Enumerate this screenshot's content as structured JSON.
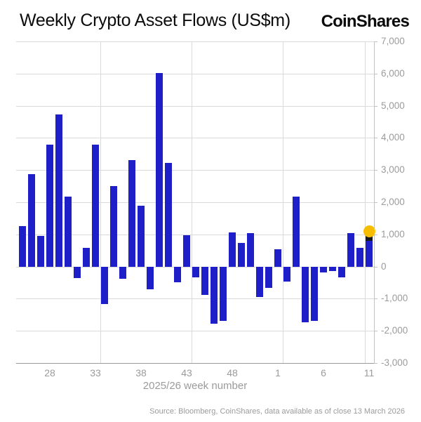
{
  "header": {
    "title": "Weekly Crypto Asset Flows (US$m)",
    "logo": "CoinShares"
  },
  "footer": {
    "source": "Source: Bloomberg, CoinShares, data available as of close 13 March 2026"
  },
  "chart_data": {
    "type": "bar",
    "title": "Weekly Crypto Asset Flows (US$m)",
    "xlabel": "2025/26 week number",
    "ylabel": "",
    "ylim": [
      -3000,
      7000
    ],
    "grid_step": 1000,
    "grid": "on",
    "legend": "none",
    "y_axis_side": "right",
    "y_tick_labels": [
      "7,000",
      "6,000",
      "5,000",
      "4,000",
      "3,000",
      "2,000",
      "1,000",
      "0",
      "-1,000",
      "-2,000",
      "-3,000"
    ],
    "categories": [
      "25",
      "26",
      "27",
      "28",
      "29",
      "30",
      "31",
      "32",
      "33",
      "34",
      "35",
      "36",
      "37",
      "38",
      "39",
      "40",
      "41",
      "42",
      "43",
      "44",
      "45",
      "46",
      "47",
      "48",
      "49",
      "50",
      "51",
      "52",
      "1",
      "2",
      "3",
      "4",
      "5",
      "6",
      "7",
      "8",
      "9",
      "10",
      "11"
    ],
    "values": [
      1260,
      2880,
      950,
      3780,
      4720,
      2170,
      -350,
      570,
      3780,
      -1170,
      2500,
      -370,
      3310,
      1900,
      -700,
      6020,
      3220,
      -500,
      970,
      -340,
      -880,
      -1780,
      -1680,
      1060,
      740,
      1050,
      -940,
      -660,
      540,
      -470,
      2170,
      -1740,
      -1690,
      -180,
      -140,
      -340,
      1050,
      570,
      1050
    ],
    "x_tick_indices": [
      3,
      8,
      13,
      18,
      23,
      28,
      33,
      38
    ],
    "vgrid_after_index": [
      8,
      18,
      28,
      37
    ],
    "bar_color": "#1F1FC9",
    "highlight": {
      "index": 38,
      "week": "11",
      "dot_color": "#F7BE00",
      "cap_color": "#16161F"
    }
  }
}
